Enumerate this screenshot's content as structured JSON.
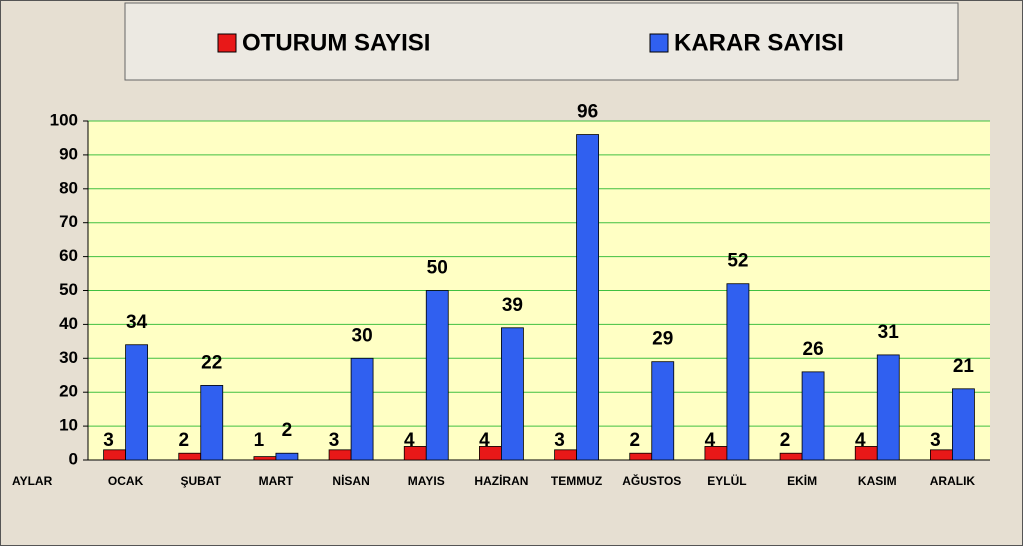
{
  "chart_data": {
    "type": "bar",
    "categories": [
      "OCAK",
      "ŞUBAT",
      "MART",
      "NİSAN",
      "MAYIS",
      "HAZİRAN",
      "TEMMUZ",
      "AĞUSTOS",
      "EYLÜL",
      "EKİM",
      "KASIM",
      "ARALIK"
    ],
    "x_label": "AYLAR",
    "series": [
      {
        "name": "OTURUM SAYISI",
        "color": "#e81818",
        "values": [
          3,
          2,
          1,
          3,
          4,
          4,
          3,
          2,
          4,
          2,
          4,
          3
        ]
      },
      {
        "name": "KARAR SAYISI",
        "color": "#3060f0",
        "values": [
          34,
          22,
          2,
          30,
          50,
          39,
          96,
          29,
          52,
          26,
          31,
          21
        ]
      }
    ],
    "ylim": [
      0,
      100
    ],
    "yticks": [
      0,
      10,
      20,
      30,
      40,
      50,
      60,
      70,
      80,
      90,
      100
    ],
    "grid": true,
    "legend": "top"
  }
}
